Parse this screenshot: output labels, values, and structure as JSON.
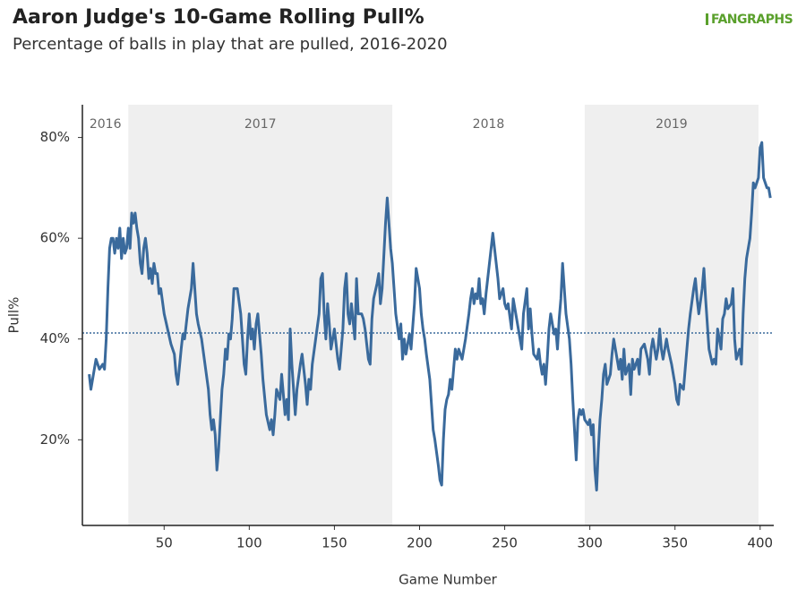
{
  "logo": "FANGRAPHS",
  "chart_data": {
    "type": "line",
    "title": "Aaron Judge's 10-Game Rolling Pull%",
    "subtitle": "Percentage of balls in play that are pulled, 2016-2020",
    "x_label": "Game Number",
    "y_label": "Pull%",
    "color": "#3a6a9c",
    "xlim": [
      2,
      408
    ],
    "ylim": [
      3,
      86.5
    ],
    "xticks": [
      50,
      100,
      150,
      200,
      250,
      300,
      350,
      400
    ],
    "yticks": [
      {
        "value": 20,
        "label": "20%"
      },
      {
        "value": 40,
        "label": "40%"
      },
      {
        "value": 60,
        "label": "60%"
      },
      {
        "value": 80,
        "label": "80%"
      }
    ],
    "reference_line": 41.2,
    "bands": [
      {
        "label": "2016",
        "xrange": [
          2,
          29
        ],
        "shaded": false
      },
      {
        "label": "2017",
        "xrange": [
          29,
          184
        ],
        "shaded": true
      },
      {
        "label": "2018",
        "xrange": [
          184,
          297
        ],
        "shaded": false
      },
      {
        "label": "2019",
        "xrange": [
          297,
          399
        ],
        "shaded": true
      }
    ],
    "x": [
      6,
      7,
      9,
      10,
      12,
      14,
      15,
      16,
      17,
      18,
      19,
      20,
      21,
      22,
      23,
      24,
      25,
      26,
      27,
      28,
      29,
      30,
      31,
      32,
      33,
      34,
      35,
      36,
      37,
      38,
      39,
      40,
      41,
      42,
      43,
      44,
      45,
      46,
      47,
      48,
      50,
      52,
      54,
      56,
      57,
      58,
      60,
      61,
      62,
      64,
      66,
      67,
      68,
      69,
      70,
      72,
      74,
      76,
      77,
      78,
      79,
      80,
      81,
      82,
      83,
      84,
      85,
      86,
      87,
      88,
      89,
      90,
      91,
      93,
      95,
      96,
      97,
      98,
      99,
      100,
      101,
      102,
      103,
      104,
      105,
      107,
      108,
      110,
      112,
      113,
      114,
      115,
      116,
      118,
      119,
      121,
      122,
      123,
      124,
      125,
      126,
      127,
      128,
      130,
      131,
      133,
      134,
      135,
      136,
      137,
      139,
      141,
      142,
      143,
      144,
      145,
      146,
      147,
      148,
      150,
      152,
      153,
      155,
      156,
      157,
      158,
      159,
      160,
      162,
      163,
      164,
      166,
      167,
      168,
      170,
      171,
      172,
      173,
      175,
      176,
      177,
      178,
      180,
      181,
      182,
      183,
      184,
      185,
      186,
      188,
      189,
      190,
      191,
      192,
      194,
      195,
      197,
      198,
      200,
      201,
      202,
      203,
      204,
      206,
      207,
      208,
      209,
      211,
      212,
      213,
      214,
      215,
      216,
      217,
      218,
      219,
      220,
      221,
      222,
      223,
      225,
      226,
      227,
      229,
      230,
      231,
      232,
      233,
      234,
      235,
      236,
      237,
      238,
      239,
      241,
      242,
      243,
      244,
      245,
      246,
      247,
      249,
      250,
      251,
      252,
      254,
      255,
      256,
      257,
      259,
      260,
      261,
      263,
      264,
      265,
      266,
      267,
      269,
      270,
      271,
      272,
      273,
      274,
      275,
      276,
      277,
      279,
      280,
      281,
      282,
      283,
      284,
      285,
      286,
      288,
      289,
      290,
      291,
      292,
      293,
      294,
      295,
      296,
      297,
      299,
      300,
      301,
      302,
      303,
      304,
      305,
      306,
      307,
      308,
      309,
      310,
      312,
      313,
      314,
      315,
      317,
      318,
      319,
      320,
      321,
      323,
      324,
      325,
      326,
      328,
      329,
      330,
      332,
      334,
      335,
      336,
      337,
      339,
      340,
      341,
      342,
      343,
      345,
      346,
      348,
      350,
      351,
      352,
      353,
      355,
      356,
      358,
      359,
      361,
      362,
      363,
      364,
      366,
      367,
      368,
      369,
      370,
      372,
      373,
      374,
      375,
      377,
      378,
      379,
      380,
      381,
      383,
      384,
      385,
      386,
      388,
      389,
      390,
      391,
      392,
      394,
      395,
      396,
      397,
      399,
      400,
      401,
      402,
      404,
      405,
      406
    ],
    "values": [
      33,
      30,
      34,
      36,
      34,
      35,
      34,
      40,
      50,
      58,
      60,
      60,
      57,
      60,
      58,
      62,
      56,
      60,
      57,
      58,
      62,
      58,
      65,
      63,
      65,
      62,
      60,
      55,
      53,
      58,
      60,
      57,
      52,
      54,
      51,
      55,
      53,
      53,
      49,
      50,
      45,
      42,
      39,
      37,
      33,
      31,
      38,
      41,
      40,
      46,
      50,
      55,
      50,
      45,
      43,
      40,
      35,
      30,
      25,
      22,
      24,
      21,
      14,
      18,
      24,
      30,
      33,
      38,
      36,
      41,
      40,
      44,
      50,
      50,
      45,
      40,
      35,
      33,
      40,
      45,
      40,
      42,
      38,
      43,
      45,
      37,
      32,
      25,
      22,
      24,
      21,
      25,
      30,
      28,
      33,
      25,
      28,
      24,
      42,
      35,
      30,
      25,
      30,
      35,
      37,
      31,
      27,
      32,
      30,
      35,
      40,
      45,
      52,
      53,
      45,
      40,
      47,
      43,
      38,
      42,
      36,
      34,
      42,
      50,
      53,
      45,
      43,
      47,
      40,
      52,
      45,
      45,
      44,
      42,
      36,
      35,
      44,
      48,
      51,
      53,
      47,
      50,
      63,
      68,
      63,
      58,
      55,
      50,
      45,
      40,
      43,
      36,
      40,
      37,
      41,
      38,
      47,
      54,
      50,
      45,
      42,
      40,
      37,
      32,
      27,
      22,
      20,
      15,
      12,
      11,
      20,
      26,
      28,
      29,
      32,
      30,
      34,
      38,
      36,
      38,
      36,
      38,
      40,
      45,
      48,
      50,
      47,
      49,
      48,
      52,
      47,
      48,
      45,
      49,
      55,
      58,
      61,
      58,
      55,
      52,
      48,
      50,
      47,
      46,
      47,
      42,
      48,
      46,
      44,
      40,
      38,
      45,
      50,
      42,
      46,
      41,
      37,
      36,
      38,
      35,
      33,
      35,
      31,
      36,
      42,
      45,
      41,
      42,
      38,
      44,
      48,
      55,
      50,
      45,
      40,
      35,
      28,
      22,
      16,
      24,
      26,
      25,
      26,
      24,
      23,
      24,
      21,
      23,
      14,
      10,
      18,
      24,
      28,
      33,
      35,
      31,
      33,
      37,
      40,
      38,
      34,
      36,
      32,
      38,
      33,
      35,
      29,
      36,
      34,
      36,
      33,
      38,
      39,
      36,
      33,
      38,
      40,
      36,
      38,
      42,
      38,
      36,
      40,
      38,
      35,
      31,
      28,
      27,
      31,
      30,
      34,
      42,
      45,
      50,
      52,
      48,
      45,
      50,
      54,
      48,
      43,
      38,
      35,
      36,
      35,
      42,
      38,
      44,
      45,
      48,
      46,
      47,
      50,
      40,
      36,
      38,
      35,
      45,
      52,
      56,
      60,
      65,
      71,
      70,
      72,
      78,
      79,
      72,
      70,
      70,
      68
    ]
  }
}
